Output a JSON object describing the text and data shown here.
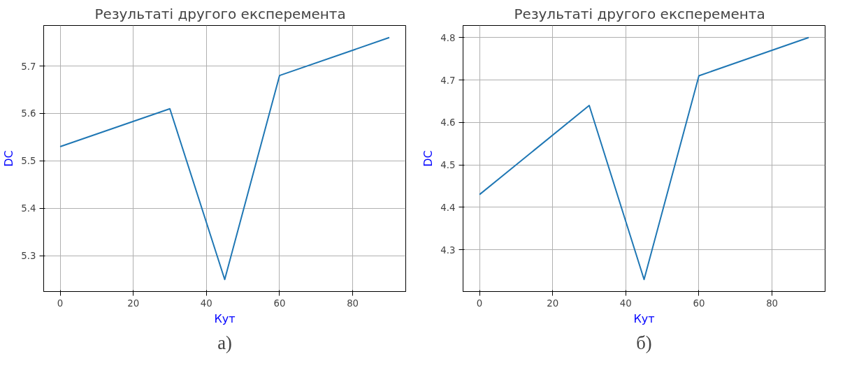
{
  "chart_data": [
    {
      "type": "line",
      "title": "Результаті другого   експеремента",
      "xlabel": "Кут",
      "ylabel": "DC",
      "x": [
        0,
        30,
        45,
        60,
        90
      ],
      "series": [
        {
          "color": "#1f77b4",
          "values": [
            5.53,
            5.61,
            5.25,
            5.68,
            5.76
          ]
        }
      ],
      "xlim": [
        -4.5,
        94.5
      ],
      "xticks": [
        0,
        20,
        40,
        60,
        80
      ],
      "ylim": [
        5.2245,
        5.7855
      ],
      "yticks": [
        5.3,
        5.4,
        5.5,
        5.6,
        5.7
      ],
      "grid": true,
      "annotations": [
        "а)"
      ]
    },
    {
      "type": "line",
      "title": "Результаті другого   експеремента",
      "xlabel": "Кут",
      "ylabel": "DC",
      "x": [
        0,
        30,
        45,
        60,
        90
      ],
      "series": [
        {
          "color": "#1f77b4",
          "values": [
            4.43,
            4.64,
            4.23,
            4.71,
            4.8
          ]
        }
      ],
      "xlim": [
        -4.5,
        94.5
      ],
      "xticks": [
        0,
        20,
        40,
        60,
        80
      ],
      "ylim": [
        4.2015,
        4.8285
      ],
      "yticks": [
        4.3,
        4.4,
        4.5,
        4.6,
        4.7,
        4.8
      ],
      "grid": true,
      "annotations": [
        "б)"
      ]
    }
  ]
}
